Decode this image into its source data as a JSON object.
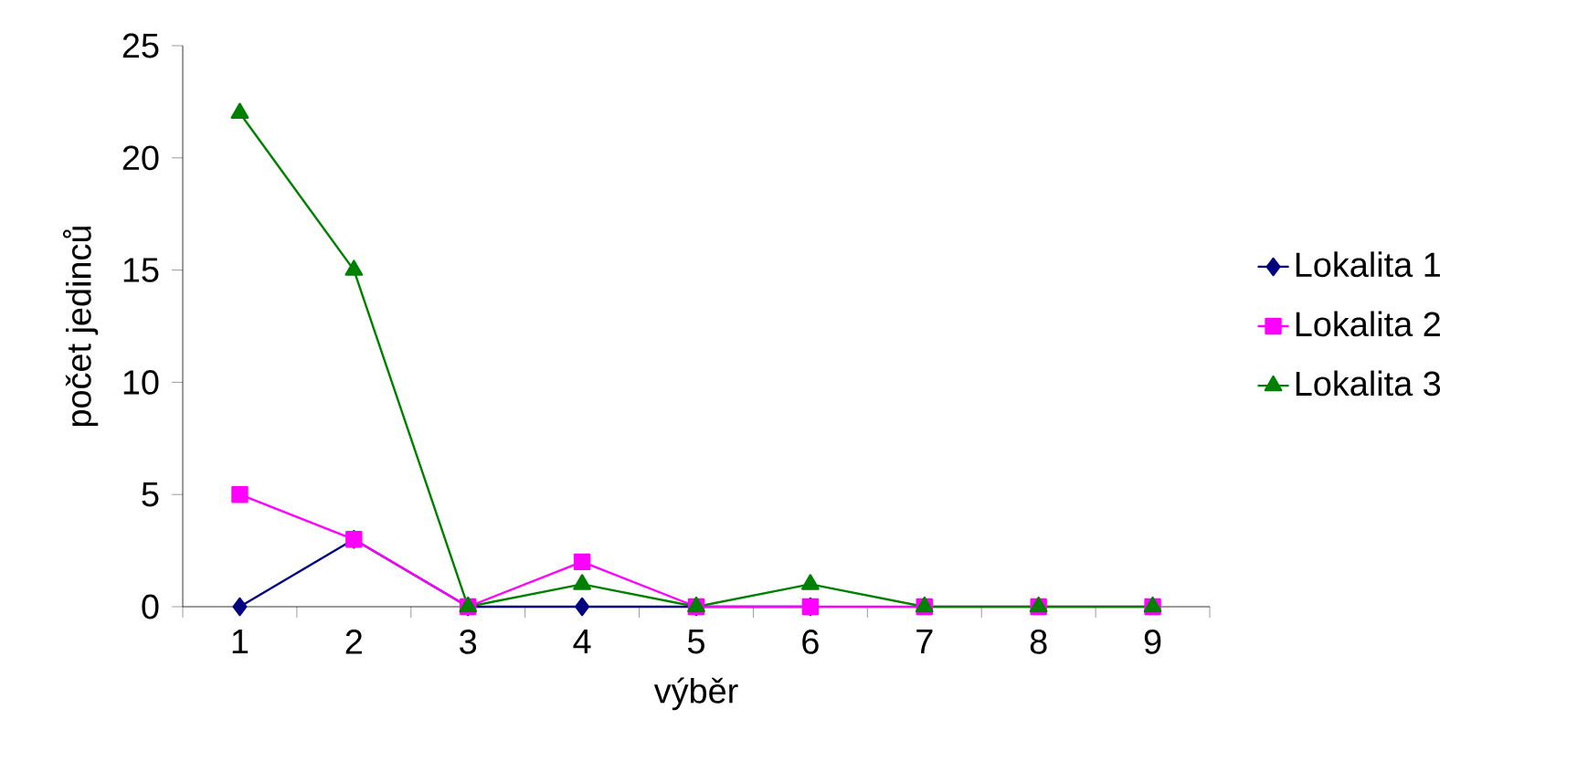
{
  "chart_data": {
    "type": "line",
    "xlabel": "výběr",
    "ylabel": "počet jedinců",
    "categories": [
      "1",
      "2",
      "3",
      "4",
      "5",
      "6",
      "7",
      "8",
      "9"
    ],
    "series": [
      {
        "name": "Lokalita 1",
        "color": "#000080",
        "marker": "diamond",
        "values": [
          0,
          3,
          0,
          0,
          0,
          0,
          null,
          null,
          null
        ]
      },
      {
        "name": "Lokalita 2",
        "color": "#ff00ff",
        "marker": "square",
        "values": [
          5,
          3,
          0,
          2,
          0,
          0,
          0,
          0,
          0
        ]
      },
      {
        "name": "Lokalita 3",
        "color": "#008000",
        "marker": "triangle",
        "values": [
          22,
          15,
          0,
          1,
          0,
          1,
          0,
          0,
          0
        ]
      }
    ],
    "ylim": [
      0,
      25
    ],
    "yticks": [
      0,
      5,
      10,
      15,
      20,
      25
    ],
    "grid": false,
    "legend": "right",
    "line_style": "solid"
  }
}
